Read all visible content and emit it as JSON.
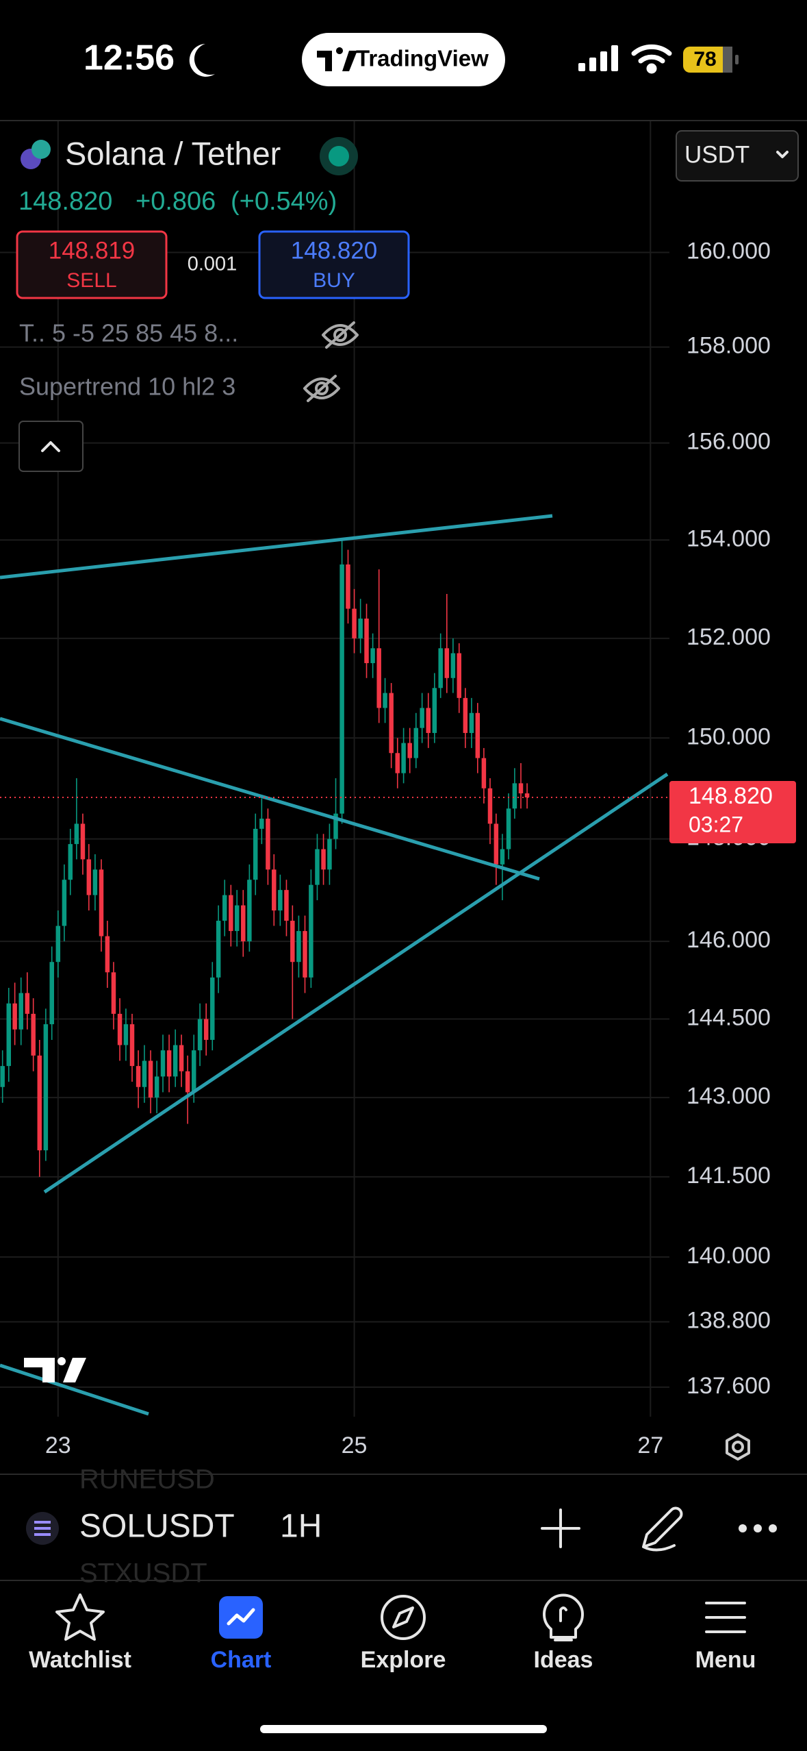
{
  "status_bar": {
    "time": "12:56",
    "app": "TradingView",
    "battery": "78"
  },
  "header": {
    "pair": "Solana / Tether",
    "price": "148.820",
    "change": "+0.806",
    "change_pct": "(+0.54%)",
    "sell_price": "148.819",
    "sell_label": "SELL",
    "spread": "0.001",
    "buy_price": "148.820",
    "buy_label": "BUY",
    "indicator_1": "T.. 5 -5 25 85 45 8...",
    "indicator_2": "Supertrend 10 hl2 3",
    "currency": "USDT"
  },
  "chart_data": {
    "type": "candlestick",
    "up_color": "#089981",
    "down_color": "#f23645",
    "log_scale": true,
    "grid": true,
    "x": [
      22.625,
      22.667,
      22.708,
      22.75,
      22.792,
      22.833,
      22.875,
      22.917,
      22.958,
      23,
      23.042,
      23.083,
      23.125,
      23.167,
      23.208,
      23.25,
      23.292,
      23.333,
      23.375,
      23.417,
      23.458,
      23.5,
      23.542,
      23.583,
      23.625,
      23.667,
      23.708,
      23.75,
      23.792,
      23.833,
      23.875,
      23.917,
      23.958,
      24,
      24.042,
      24.083,
      24.125,
      24.167,
      24.208,
      24.25,
      24.292,
      24.333,
      24.375,
      24.417,
      24.458,
      24.5,
      24.542,
      24.583,
      24.625,
      24.667,
      24.708,
      24.75,
      24.792,
      24.833,
      24.875,
      24.917,
      24.958,
      25,
      25.042,
      25.083,
      25.125,
      25.167,
      25.208,
      25.25,
      25.292,
      25.333,
      25.375,
      25.417,
      25.458,
      25.5,
      25.542,
      25.583,
      25.625,
      25.667,
      25.708,
      25.75,
      25.792,
      25.833,
      25.875,
      25.917,
      25.958,
      26,
      26.042,
      26.083,
      26.125,
      26.167
    ],
    "open": [
      143.2,
      143.6,
      144.8,
      144.3,
      145.0,
      144.6,
      143.8,
      142.0,
      144.4,
      145.6,
      146.3,
      147.2,
      147.9,
      148.3,
      147.6,
      146.9,
      147.4,
      146.1,
      145.4,
      144.6,
      144.0,
      144.4,
      143.6,
      143.2,
      143.7,
      143.0,
      143.4,
      143.9,
      143.4,
      144.0,
      143.5,
      143.1,
      143.9,
      144.5,
      144.1,
      145.3,
      146.4,
      146.9,
      146.2,
      146.7,
      146.0,
      147.2,
      148.2,
      148.4,
      147.4,
      146.6,
      147.0,
      146.4,
      145.6,
      146.2,
      145.3,
      147.1,
      147.8,
      147.4,
      148.0,
      148.5,
      153.5,
      152.6,
      152.0,
      152.4,
      151.5,
      151.8,
      150.6,
      150.9,
      149.7,
      149.3,
      149.9,
      149.6,
      150.2,
      150.6,
      150.1,
      151.0,
      151.8,
      151.2,
      151.7,
      150.8,
      150.1,
      150.5,
      149.6,
      149.0,
      148.3,
      147.5,
      147.8,
      148.6,
      149.1,
      148.9
    ],
    "high": [
      143.9,
      145.1,
      145.2,
      145.3,
      145.4,
      144.9,
      144.1,
      144.7,
      145.9,
      146.6,
      147.5,
      148.2,
      149.2,
      148.5,
      147.9,
      147.7,
      147.6,
      146.4,
      145.6,
      144.9,
      144.7,
      144.6,
      143.9,
      144.0,
      143.9,
      143.7,
      144.2,
      144.2,
      144.3,
      144.2,
      143.8,
      144.2,
      144.8,
      144.8,
      145.6,
      146.7,
      147.2,
      147.1,
      147.0,
      147.0,
      147.5,
      148.5,
      148.8,
      148.6,
      147.7,
      147.3,
      147.2,
      146.7,
      146.5,
      146.5,
      147.4,
      148.1,
      148.1,
      148.3,
      149.2,
      154.0,
      153.8,
      153.0,
      152.8,
      152.7,
      152.1,
      153.4,
      151.2,
      151.1,
      150.0,
      150.2,
      150.2,
      150.5,
      150.9,
      150.9,
      151.3,
      152.1,
      152.9,
      152.0,
      151.9,
      151.0,
      150.8,
      150.7,
      149.8,
      149.2,
      148.5,
      148.1,
      148.9,
      149.4,
      149.5,
      149.1
    ],
    "low": [
      142.9,
      143.3,
      144.0,
      144.0,
      144.3,
      143.5,
      141.5,
      141.8,
      144.1,
      145.3,
      146.0,
      146.9,
      147.6,
      147.3,
      146.6,
      146.6,
      145.8,
      145.1,
      144.3,
      143.7,
      143.7,
      143.3,
      142.8,
      142.9,
      142.7,
      142.7,
      143.1,
      143.1,
      143.2,
      143.2,
      142.5,
      142.9,
      143.6,
      143.8,
      143.9,
      145.0,
      146.1,
      145.9,
      145.9,
      145.7,
      145.8,
      146.9,
      147.9,
      147.1,
      146.3,
      146.3,
      146.1,
      144.5,
      145.3,
      145.0,
      145.1,
      146.8,
      147.1,
      147.1,
      147.8,
      148.3,
      152.3,
      151.7,
      151.7,
      151.2,
      151.2,
      150.3,
      150.3,
      149.4,
      149.0,
      149.1,
      149.3,
      149.4,
      149.9,
      149.8,
      149.9,
      150.8,
      150.9,
      150.9,
      150.5,
      149.8,
      149.8,
      149.3,
      148.7,
      147.9,
      147.1,
      146.8,
      147.6,
      148.4,
      148.6,
      148.6
    ],
    "close": [
      143.6,
      144.8,
      144.3,
      145.0,
      144.6,
      143.8,
      142.0,
      144.4,
      145.6,
      146.3,
      147.2,
      147.9,
      148.3,
      147.6,
      146.9,
      147.4,
      146.1,
      145.4,
      144.6,
      144.0,
      144.4,
      143.6,
      143.2,
      143.7,
      143.0,
      143.4,
      143.9,
      143.4,
      144.0,
      143.5,
      143.1,
      143.9,
      144.5,
      144.1,
      145.3,
      146.4,
      146.9,
      146.2,
      146.7,
      146.0,
      147.2,
      148.2,
      148.4,
      147.4,
      146.6,
      147.0,
      146.4,
      145.6,
      146.2,
      145.3,
      147.1,
      147.8,
      147.4,
      148.0,
      148.5,
      153.5,
      152.6,
      152.0,
      152.4,
      151.5,
      151.8,
      150.6,
      150.9,
      149.7,
      149.3,
      149.9,
      149.6,
      150.2,
      150.6,
      150.1,
      151.0,
      151.8,
      151.2,
      151.7,
      150.8,
      150.1,
      150.5,
      149.6,
      149.0,
      148.3,
      147.5,
      147.8,
      148.6,
      149.1,
      148.9,
      148.82
    ],
    "ylim": [
      137.06,
      162.83
    ],
    "yticks": [
      {
        "value": 160,
        "label": "160.000"
      },
      {
        "value": 158,
        "label": "158.000"
      },
      {
        "value": 156,
        "label": "156.000"
      },
      {
        "value": 154,
        "label": "154.000"
      },
      {
        "value": 152,
        "label": "152.000"
      },
      {
        "value": 150,
        "label": "150.000"
      },
      {
        "value": 148,
        "label": "148.000"
      },
      {
        "value": 146,
        "label": "146.000"
      },
      {
        "value": 144.5,
        "label": "144.500"
      },
      {
        "value": 143,
        "label": "143.000"
      },
      {
        "value": 141.5,
        "label": "141.500"
      },
      {
        "value": 140,
        "label": "140.000"
      },
      {
        "value": 138.8,
        "label": "138.800"
      },
      {
        "value": 137.6,
        "label": "137.600"
      }
    ],
    "xlim": [
      22.608,
      27.128
    ],
    "xticks": [
      23,
      25,
      27
    ],
    "last_price": {
      "value": 148.82,
      "label": "148.820"
    },
    "countdown": "03:27"
  },
  "toolbar": {
    "symbol": "SOLUSDT",
    "interval": "1H",
    "symbol_above": "RUNEUSD",
    "symbol_below": "STXUSDT"
  },
  "tabs": [
    "Watchlist",
    "Chart",
    "Explore",
    "Ideas",
    "Menu"
  ]
}
